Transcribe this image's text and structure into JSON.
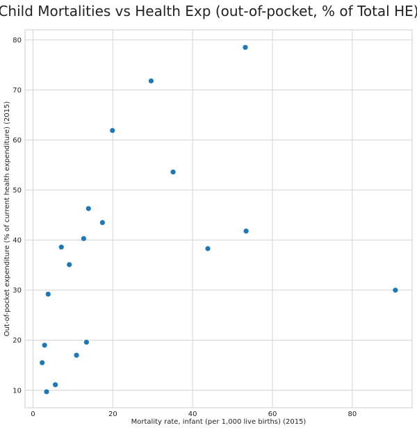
{
  "chart_data": {
    "type": "scatter",
    "title": "Child Mortalities vs Health Exp (out-of-pocket, % of Total HE)",
    "xlabel": "Mortality rate, infant (per 1,000 live births) (2015)",
    "ylabel": "Out-of-pocket expenditure (% of current health expenditure) (2015)",
    "xlim": [
      -2,
      95
    ],
    "ylim": [
      6.5,
      82
    ],
    "xticks": [
      0,
      20,
      40,
      60,
      80
    ],
    "yticks": [
      10,
      20,
      30,
      40,
      50,
      60,
      70,
      80
    ],
    "grid": true,
    "color": "#1f77b4",
    "points": [
      {
        "x": 53.2,
        "y": 78.5
      },
      {
        "x": 29.6,
        "y": 71.8
      },
      {
        "x": 19.9,
        "y": 61.9
      },
      {
        "x": 35.1,
        "y": 53.6
      },
      {
        "x": 13.9,
        "y": 46.3
      },
      {
        "x": 17.4,
        "y": 43.5
      },
      {
        "x": 53.4,
        "y": 41.8
      },
      {
        "x": 12.7,
        "y": 40.3
      },
      {
        "x": 7.1,
        "y": 38.6
      },
      {
        "x": 43.8,
        "y": 38.3
      },
      {
        "x": 9.1,
        "y": 35.1
      },
      {
        "x": 90.8,
        "y": 30.0
      },
      {
        "x": 3.8,
        "y": 29.2
      },
      {
        "x": 13.4,
        "y": 19.6
      },
      {
        "x": 2.9,
        "y": 19.0
      },
      {
        "x": 10.9,
        "y": 17.0
      },
      {
        "x": 2.3,
        "y": 15.5
      },
      {
        "x": 5.6,
        "y": 11.1
      },
      {
        "x": 3.4,
        "y": 9.7
      }
    ]
  }
}
